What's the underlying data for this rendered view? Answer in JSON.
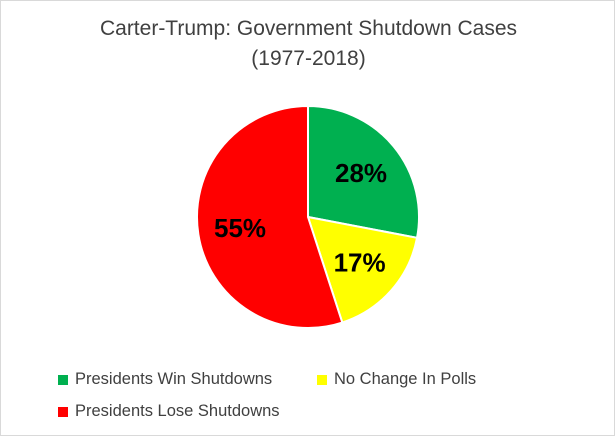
{
  "chart_data": {
    "type": "pie",
    "title_lines": [
      "Carter-Trump: Government Shutdown Cases",
      "(1977-2018)"
    ],
    "slices": [
      {
        "label": "Presidents Win Shutdowns",
        "value": 28,
        "display": "28%",
        "color": "#00b050"
      },
      {
        "label": "No Change In Polls",
        "value": 17,
        "display": "17%",
        "color": "#ffff00"
      },
      {
        "label": "Presidents Lose Shutdowns",
        "value": 55,
        "display": "55%",
        "color": "#ff0000"
      }
    ],
    "start_angle_deg": 0,
    "direction": "clockwise",
    "legend_position": "bottom",
    "slice_border_color": "#ffffff"
  }
}
